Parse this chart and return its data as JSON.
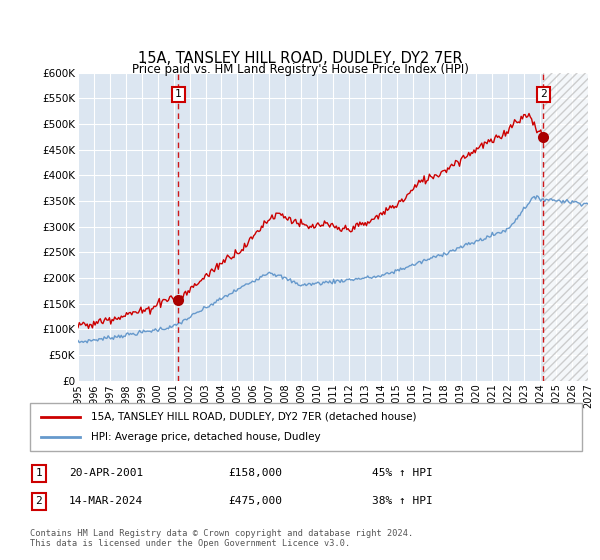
{
  "title": "15A, TANSLEY HILL ROAD, DUDLEY, DY2 7ER",
  "subtitle": "Price paid vs. HM Land Registry's House Price Index (HPI)",
  "background_color": "#ffffff",
  "plot_bg_color": "#dce6f1",
  "grid_color": "#ffffff",
  "ylim": [
    0,
    600000
  ],
  "yticks": [
    0,
    50000,
    100000,
    150000,
    200000,
    250000,
    300000,
    350000,
    400000,
    450000,
    500000,
    550000,
    600000
  ],
  "ytick_labels": [
    "£0",
    "£50K",
    "£100K",
    "£150K",
    "£200K",
    "£250K",
    "£300K",
    "£350K",
    "£400K",
    "£450K",
    "£500K",
    "£550K",
    "£600K"
  ],
  "xlabel_years": [
    "1995",
    "1996",
    "1997",
    "1998",
    "1999",
    "2000",
    "2001",
    "2002",
    "2003",
    "2004",
    "2005",
    "2006",
    "2007",
    "2008",
    "2009",
    "2010",
    "2011",
    "2012",
    "2013",
    "2014",
    "2015",
    "2016",
    "2017",
    "2018",
    "2019",
    "2020",
    "2021",
    "2022",
    "2023",
    "2024",
    "2025",
    "2026",
    "2027"
  ],
  "xlim": [
    1995,
    2027
  ],
  "sale1_date": 2001.3,
  "sale1_price": 158000,
  "sale1_label": "1",
  "sale2_date": 2024.2,
  "sale2_price": 475000,
  "sale2_label": "2",
  "red_line_color": "#cc0000",
  "blue_line_color": "#6699cc",
  "marker_color": "#aa0000",
  "vline_color": "#cc0000",
  "hatch_color": "#bbbbbb",
  "legend_label_red": "15A, TANSLEY HILL ROAD, DUDLEY, DY2 7ER (detached house)",
  "legend_label_blue": "HPI: Average price, detached house, Dudley",
  "annotation1_label": "1",
  "annotation1_date": "20-APR-2001",
  "annotation1_price": "£158,000",
  "annotation1_hpi": "45% ↑ HPI",
  "annotation2_label": "2",
  "annotation2_date": "14-MAR-2024",
  "annotation2_price": "£475,000",
  "annotation2_hpi": "38% ↑ HPI",
  "footnote": "Contains HM Land Registry data © Crown copyright and database right 2024.\nThis data is licensed under the Open Government Licence v3.0.",
  "hatch_start": 2024.2,
  "future_hatch": "////"
}
